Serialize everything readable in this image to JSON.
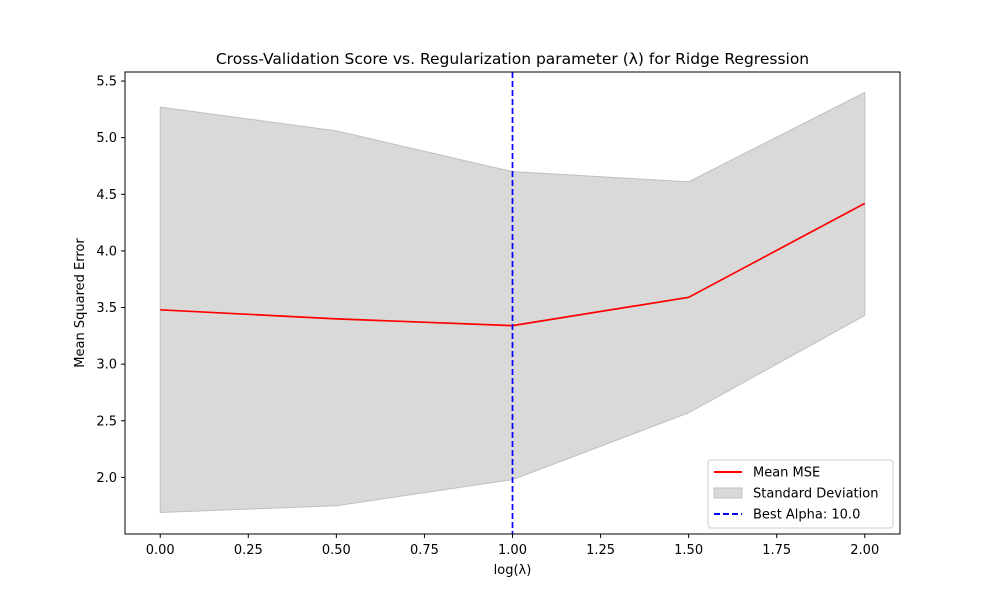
{
  "chart_data": {
    "type": "line",
    "title": "Cross-Validation Score vs. Regularization parameter (λ) for Ridge Regression",
    "xlabel": "log(λ)",
    "ylabel": "Mean Squared Error",
    "xlim": [
      -0.1,
      2.1
    ],
    "ylim": [
      1.5,
      5.58
    ],
    "x": [
      0.0,
      0.5,
      1.0,
      1.5,
      2.0
    ],
    "series": [
      {
        "name": "Mean MSE",
        "values": [
          3.48,
          3.4,
          3.34,
          3.59,
          4.42
        ],
        "color": "#ff0000",
        "style": "solid"
      }
    ],
    "band": {
      "name": "Standard Deviation",
      "lower": [
        1.69,
        1.75,
        1.98,
        2.57,
        3.43
      ],
      "upper": [
        5.27,
        5.06,
        4.7,
        4.61,
        5.4
      ],
      "color": "#bfbfbf",
      "opacity": 0.6
    },
    "vline": {
      "name": "Best Alpha: 10.0",
      "x": 1.0,
      "color": "#0000ff",
      "style": "dashed"
    },
    "xticks": [
      0.0,
      0.25,
      0.5,
      0.75,
      1.0,
      1.25,
      1.5,
      1.75,
      2.0
    ],
    "xtick_labels": [
      "0.00",
      "0.25",
      "0.50",
      "0.75",
      "1.00",
      "1.25",
      "1.50",
      "1.75",
      "2.00"
    ],
    "yticks": [
      2.0,
      2.5,
      3.0,
      3.5,
      4.0,
      4.5,
      5.0,
      5.5
    ],
    "ytick_labels": [
      "2.0",
      "2.5",
      "3.0",
      "3.5",
      "4.0",
      "4.5",
      "5.0",
      "5.5"
    ],
    "legend_position": "lower-right",
    "grid": false
  }
}
